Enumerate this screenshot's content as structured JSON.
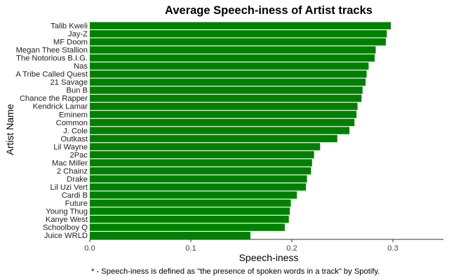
{
  "chart_data": {
    "type": "bar",
    "orientation": "horizontal",
    "title": "Average Speech-iness of Artist tracks",
    "xlabel": "Speech-iness",
    "ylabel": "Artist Name",
    "caption": "* - Speech-iness is defined as \"the presence of spoken words in a track\" by Spotify.",
    "xlim": [
      0,
      0.35
    ],
    "xticks": [
      0.0,
      0.1,
      0.2,
      0.3
    ],
    "xtick_labels": [
      "0.0",
      "0.1",
      "0.2",
      "0.3"
    ],
    "grid": false,
    "bar_color": "#008000",
    "categories": [
      "Talib Kweli",
      "Jay-Z",
      "MF Doom",
      "Megan Thee Stallion",
      "The Notorious B.I.G.",
      "Nas",
      "A Tribe Called Quest",
      "21 Savage",
      "Bun B",
      "Chance the Rapper",
      "Kendrick Lamar",
      "Eminem",
      "Common",
      "J. Cole",
      "Outkast",
      "Lil Wayne",
      "2Pac",
      "Mac Miller",
      "2 Chainz",
      "Drake",
      "Lil Uzi Vert",
      "Cardi B",
      "Future",
      "Young Thug",
      "Kanye West",
      "Schoolboy Q",
      "Juice WRLD"
    ],
    "values": [
      0.298,
      0.294,
      0.293,
      0.283,
      0.282,
      0.276,
      0.274,
      0.273,
      0.27,
      0.269,
      0.265,
      0.264,
      0.262,
      0.257,
      0.245,
      0.228,
      0.222,
      0.22,
      0.219,
      0.215,
      0.214,
      0.205,
      0.199,
      0.198,
      0.197,
      0.193,
      0.159
    ]
  }
}
